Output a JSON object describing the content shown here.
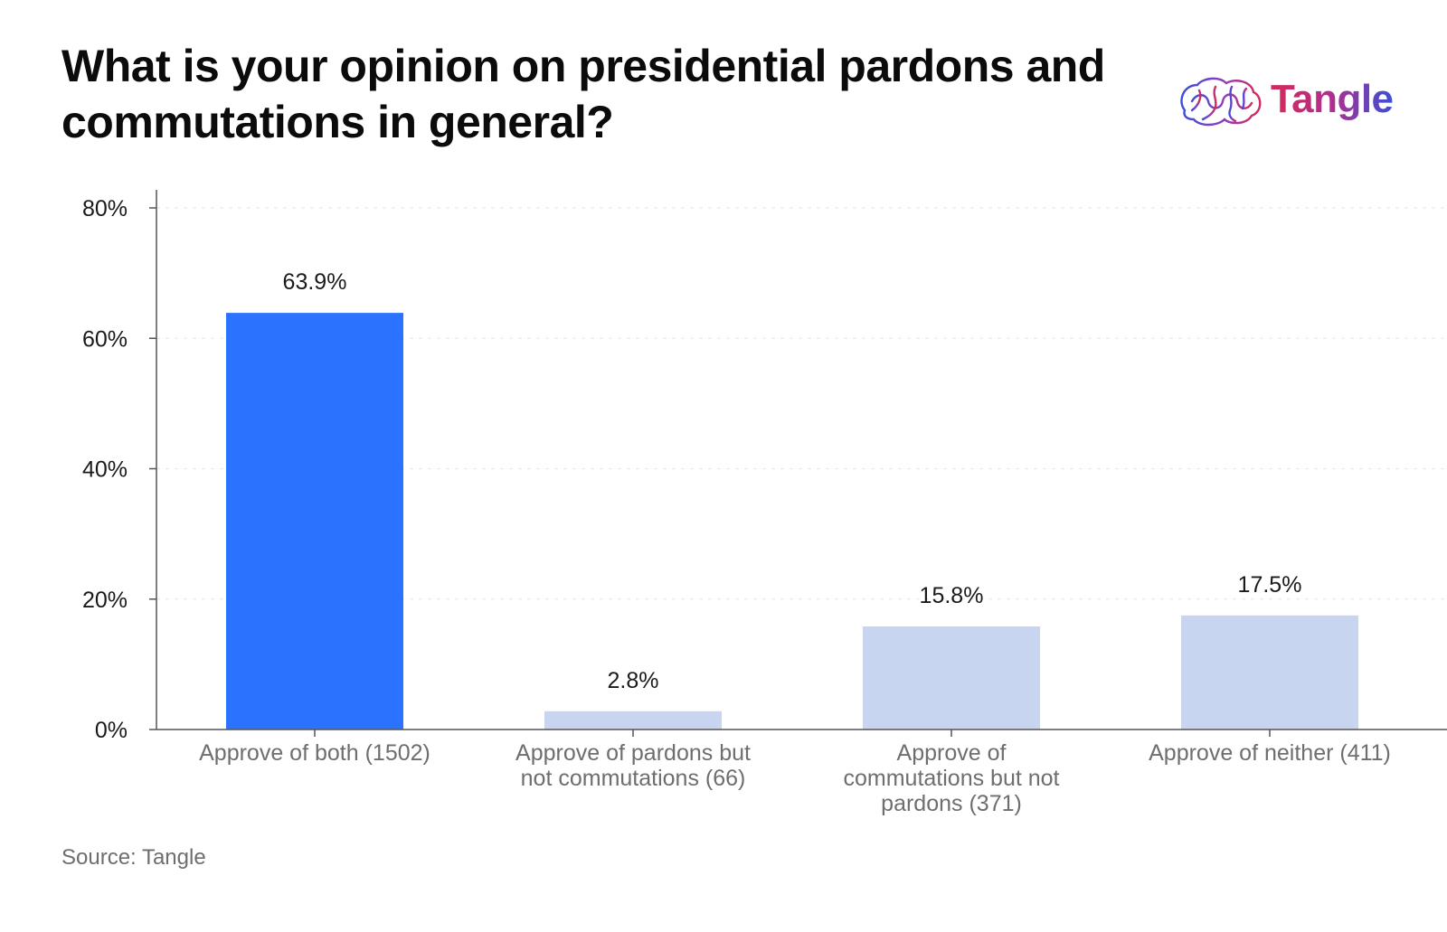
{
  "title": "What is your opinion on presidential pardons and commutations in general?",
  "logo": {
    "text": "Tangle",
    "icon": "brain-logo-icon"
  },
  "source": "Source: Tangle",
  "colors": {
    "highlight": "#2b72ff",
    "muted": "#c8d5f0",
    "axis": "#555555",
    "grid": "#e6e6e6",
    "tick_text": "#1a1a1a",
    "category_text": "#6e6e6e"
  },
  "chart_data": {
    "type": "bar",
    "categories": [
      [
        "Approve of both (1502)"
      ],
      [
        "Approve of pardons but",
        "not commutations (66)"
      ],
      [
        "Approve of",
        "commutations but not",
        "pardons (371)"
      ],
      [
        "Approve of neither (411)"
      ]
    ],
    "values": [
      63.9,
      2.8,
      15.8,
      17.5
    ],
    "data_labels": [
      "63.9%",
      "2.8%",
      "15.8%",
      "17.5%"
    ],
    "highlight_index": 0,
    "y_ticks": [
      0,
      20,
      40,
      60,
      80
    ],
    "y_tick_labels": [
      "0%",
      "20%",
      "40%",
      "60%",
      "80%"
    ],
    "ylim": [
      0,
      80
    ],
    "grid": true,
    "xlabel": "",
    "ylabel": ""
  }
}
